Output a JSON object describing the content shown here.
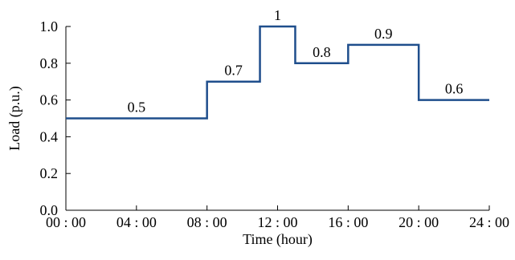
{
  "chart_data": {
    "type": "line",
    "step": true,
    "xlabel": "Time (hour)",
    "ylabel": "Load (p.u.)",
    "xlim": [
      0,
      24
    ],
    "ylim": [
      0,
      1.0
    ],
    "x_ticks": [
      0,
      4,
      8,
      12,
      16,
      20,
      24
    ],
    "x_tick_labels": [
      "00 : 00",
      "04 : 00",
      "08 : 00",
      "12 : 00",
      "16 : 00",
      "20 : 00",
      "24 : 00"
    ],
    "y_ticks": [
      0,
      0.2,
      0.4,
      0.6,
      0.8,
      1.0
    ],
    "y_tick_labels": [
      "0.0",
      "0.2",
      "0.4",
      "0.6",
      "0.8",
      "1.0"
    ],
    "grid": false,
    "line_color": "#1f4e8c",
    "segments": [
      {
        "x_start": 0,
        "x_end": 8,
        "value": 0.5,
        "label": "0.5"
      },
      {
        "x_start": 8,
        "x_end": 11,
        "value": 0.7,
        "label": "0.7"
      },
      {
        "x_start": 11,
        "x_end": 13,
        "value": 1.0,
        "label": "1"
      },
      {
        "x_start": 13,
        "x_end": 16,
        "value": 0.8,
        "label": "0.8"
      },
      {
        "x_start": 16,
        "x_end": 20,
        "value": 0.9,
        "label": "0.9"
      },
      {
        "x_start": 20,
        "x_end": 24,
        "value": 0.6,
        "label": "0.6"
      }
    ]
  }
}
